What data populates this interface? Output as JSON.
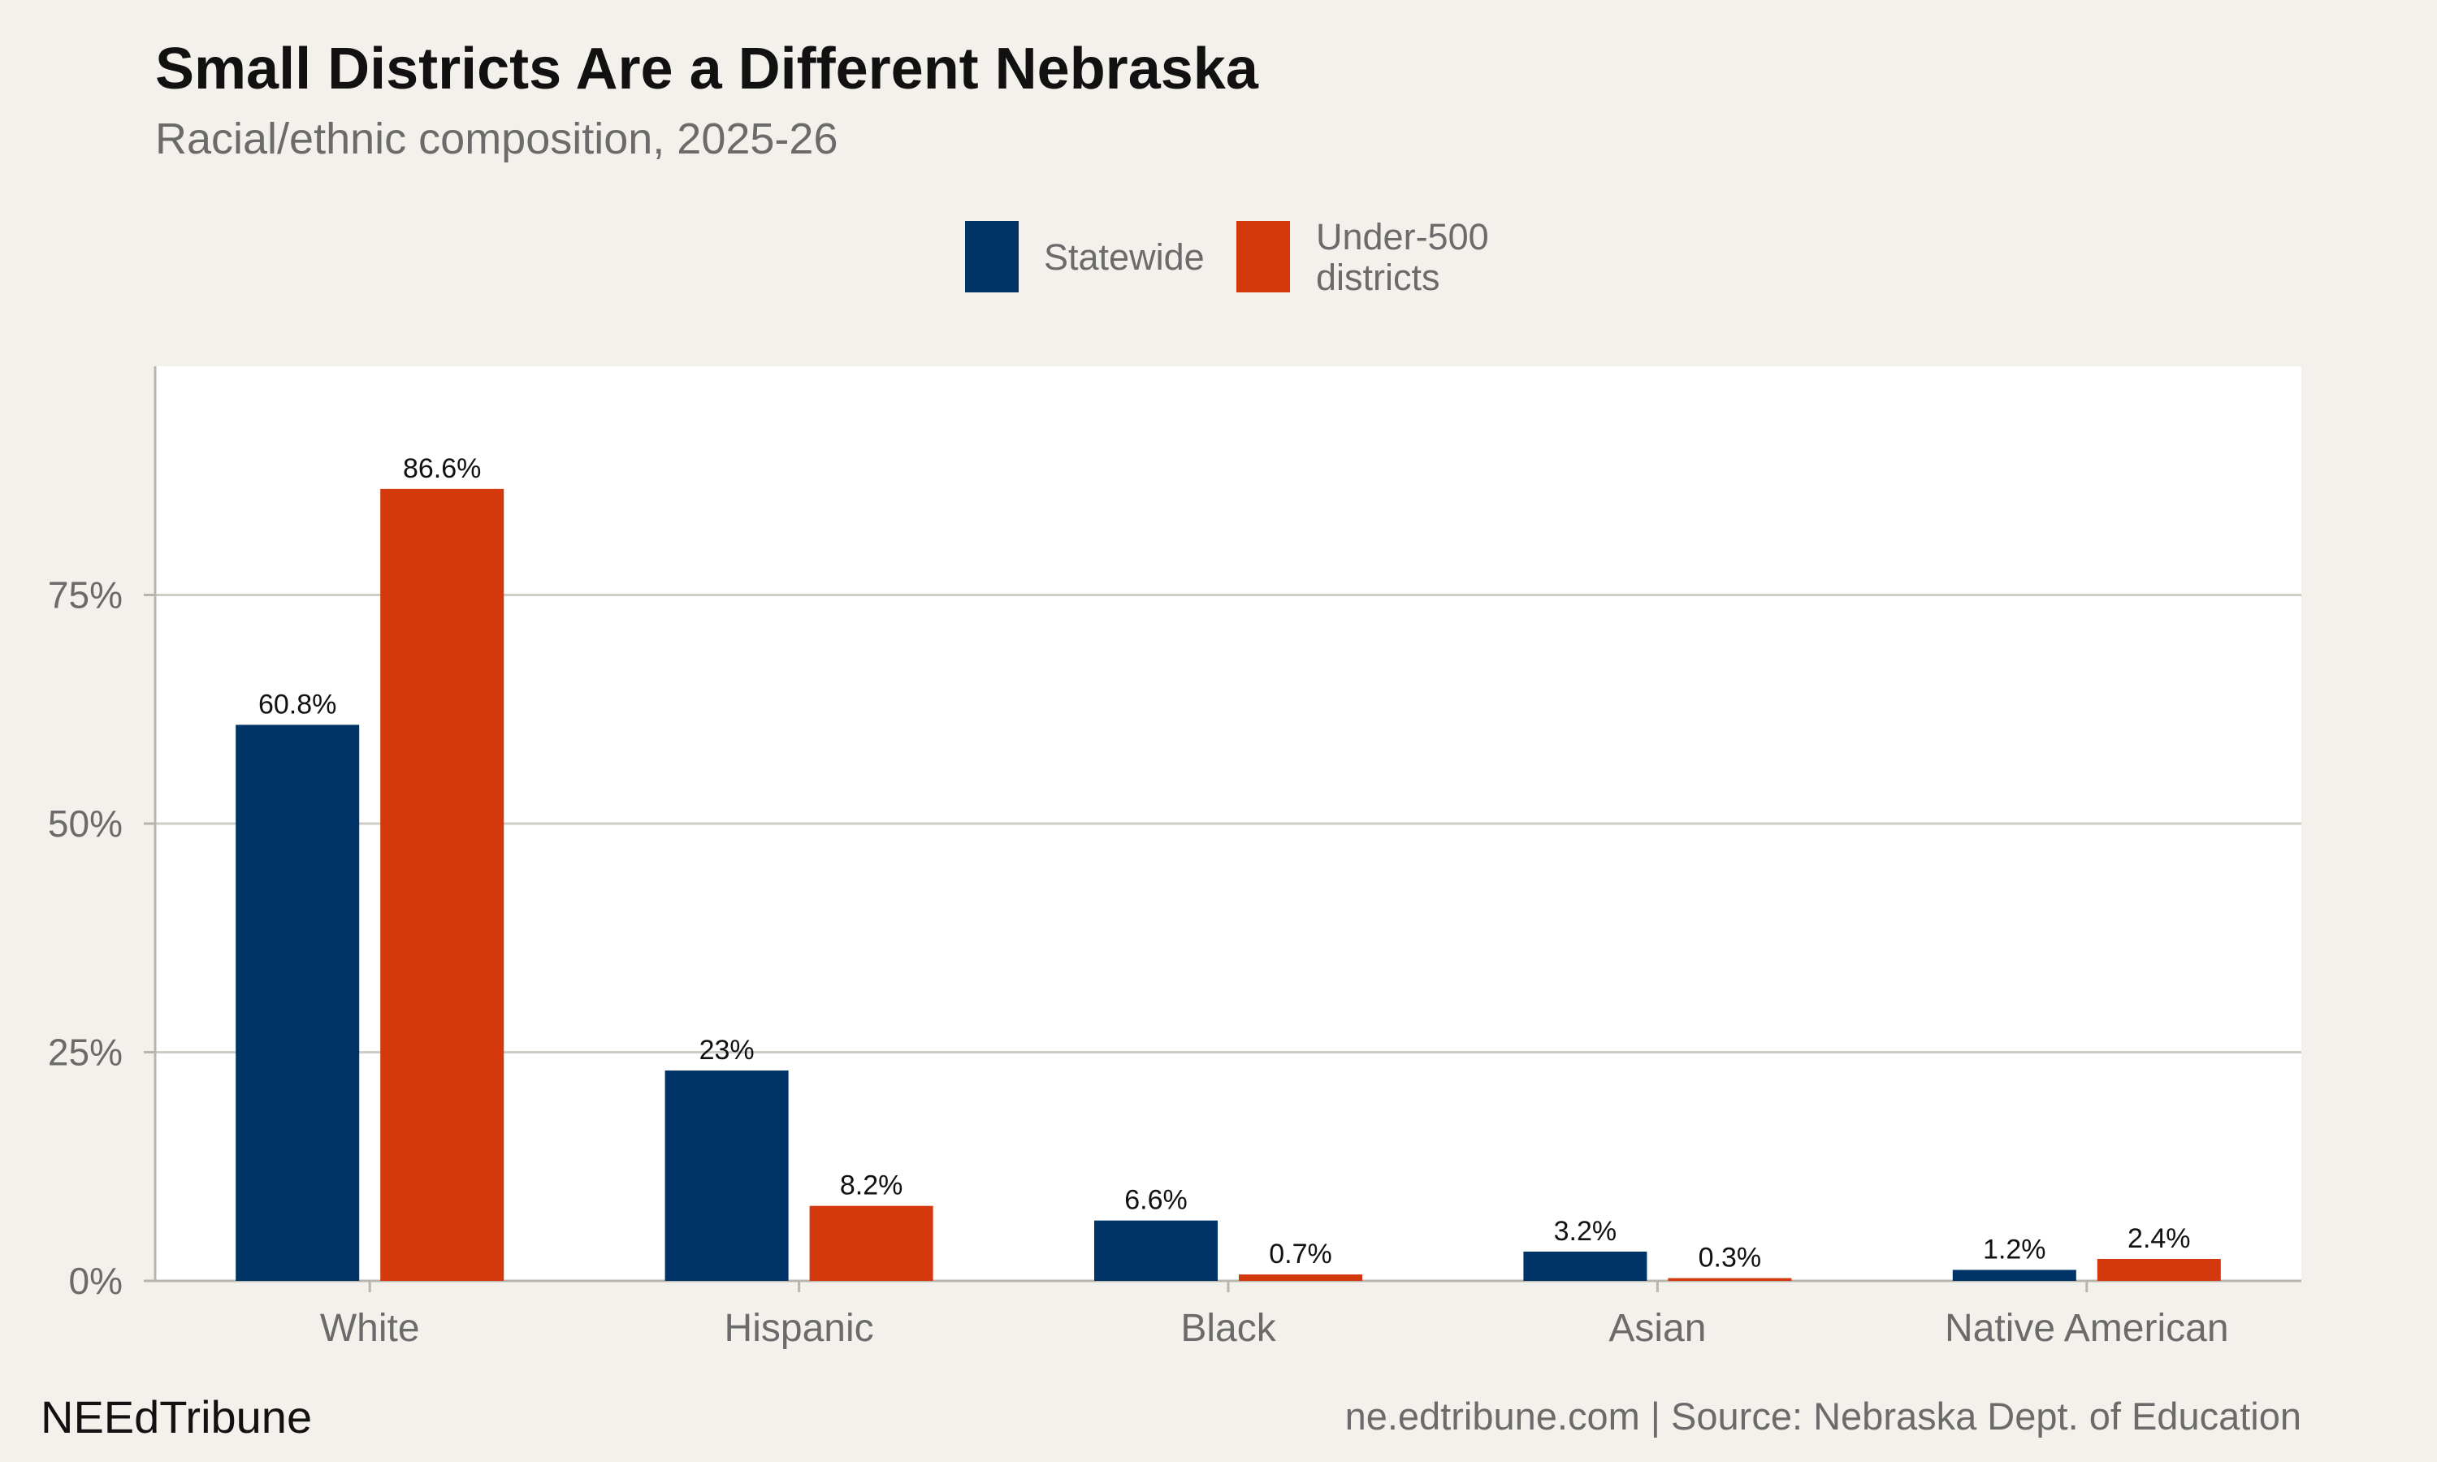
{
  "header": {
    "title": "Small Districts Are a Different Nebraska",
    "subtitle": "Racial/ethnic composition, 2025-26"
  },
  "legend": {
    "items": [
      {
        "label_lines": [
          "Statewide"
        ],
        "color": "#003366"
      },
      {
        "label_lines": [
          "Under-500",
          "districts"
        ],
        "color": "#d4380d"
      }
    ]
  },
  "footer": {
    "brand": "NEEdTribune",
    "source": "ne.edtribune.com | Source: Nebraska Dept. of Education"
  },
  "chart_data": {
    "type": "bar",
    "categories": [
      "White",
      "Hispanic",
      "Black",
      "Asian",
      "Native American"
    ],
    "series": [
      {
        "name": "Statewide",
        "values": [
          60.8,
          23,
          6.6,
          3.2,
          1.2
        ],
        "labels": [
          "60.8%",
          "23%",
          "6.6%",
          "3.2%",
          "1.2%"
        ],
        "color": "#003366"
      },
      {
        "name": "Under-500 districts",
        "values": [
          86.6,
          8.2,
          0.7,
          0.3,
          2.4
        ],
        "labels": [
          "86.6%",
          "8.2%",
          "0.7%",
          "0.3%",
          "2.4%"
        ],
        "color": "#d4380d"
      }
    ],
    "yticks": [
      0,
      25,
      50,
      75
    ],
    "ytick_labels": [
      "0%",
      "25%",
      "50%",
      "75%"
    ],
    "ylim": [
      0,
      100
    ],
    "grid": "horizontal",
    "legend_position": "top"
  }
}
